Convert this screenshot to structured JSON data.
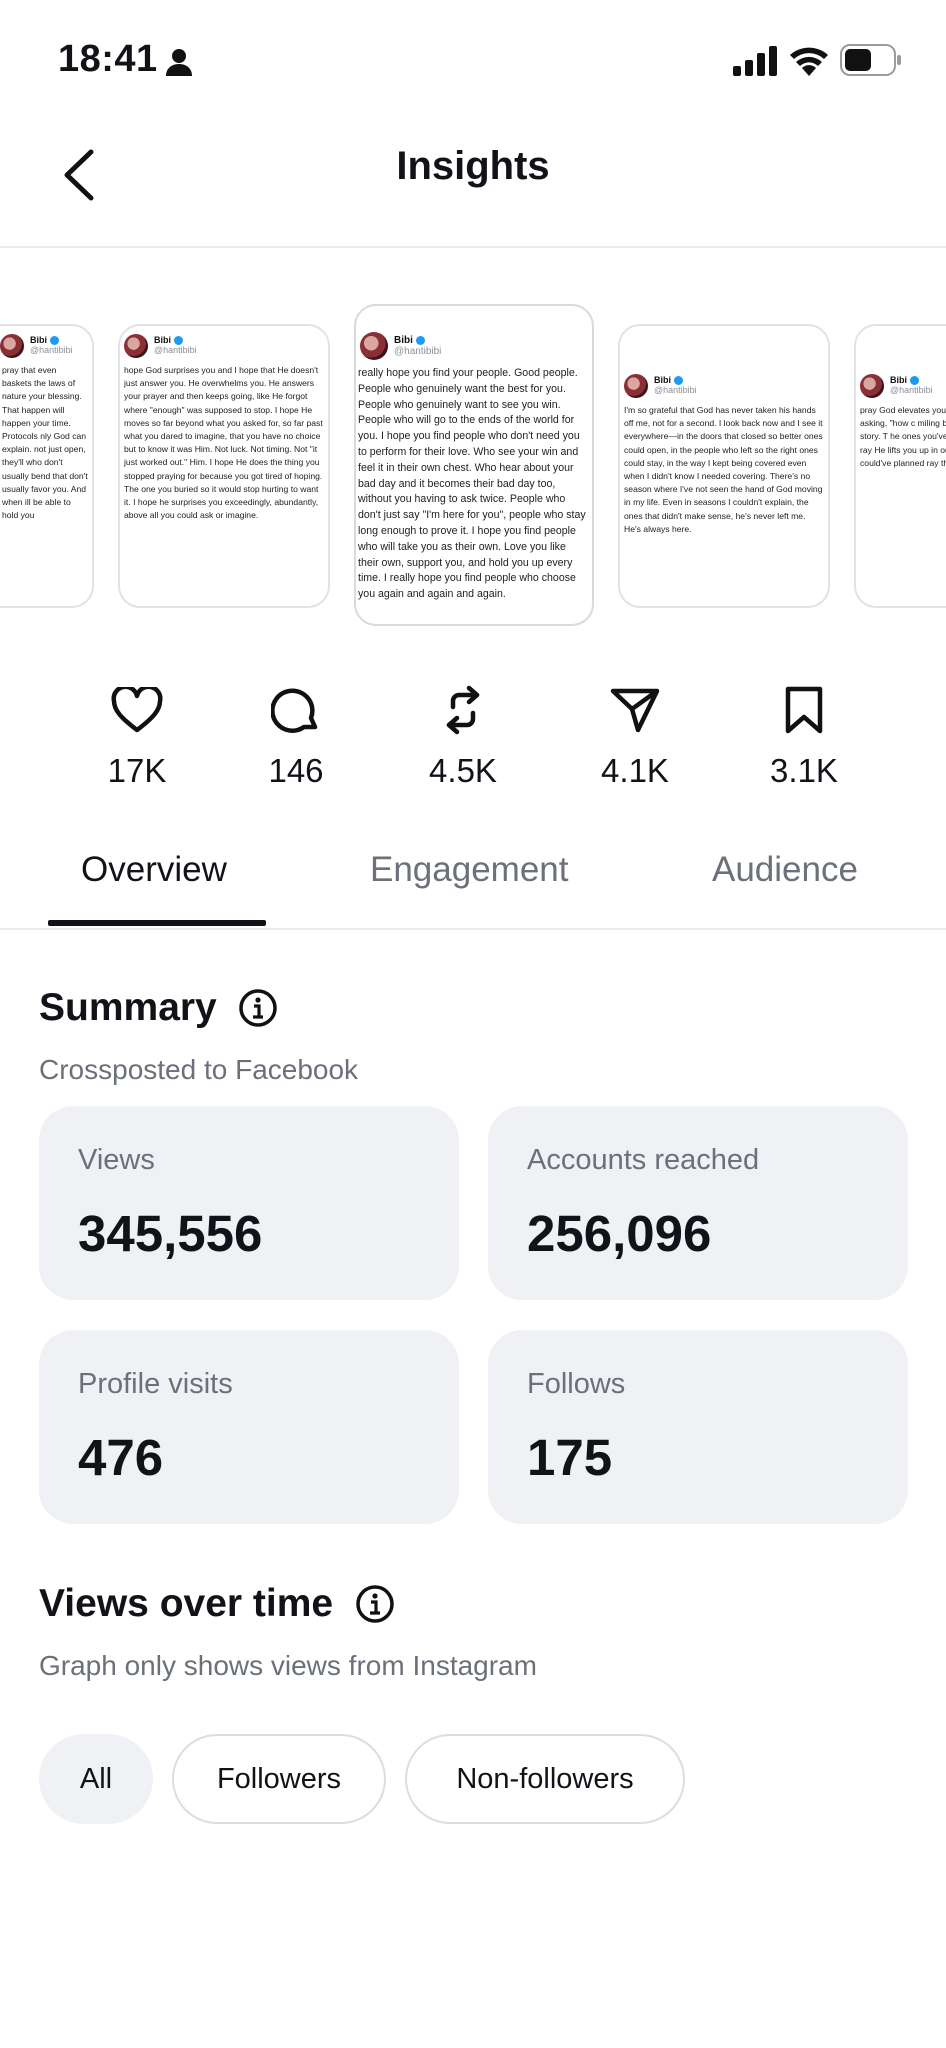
{
  "status_bar": {
    "time": "18:41"
  },
  "header": {
    "title": "Insights"
  },
  "posts": [
    {
      "name": "Bibi",
      "handle": "@hantibibi",
      "text": "pray that even baskets the laws of nature your blessing. That happen will happen your time. Protocols nly God can explain. not just open, they'll who don't usually bend that don't usually favor you. And when ill be able to hold you"
    },
    {
      "name": "Bibi",
      "handle": "@hantibibi",
      "text": "hope God surprises you and I hope that He doesn't just answer you. He overwhelms you. He answers your prayer and then keeps going, like He forgot where \"enough\" was supposed to stop. I hope He moves so far beyond what you asked for, so far past what you dared to imagine, that you have no choice but to know it was Him. Not luck. Not timing. Not \"it just worked out.\" Him. I hope He does the thing you stopped praying for because you got tired of hoping. The one you buried so it would stop hurting to want it. I hope he surprises you exceedingly, abundantly, above all you could ask or imagine."
    },
    {
      "name": "Bibi",
      "handle": "@hantibibi",
      "text": "really hope you find your people. Good people. People who genuinely want the best for you. People who genuinely want to see you win. People who will go to the ends of the world for you. I hope you find people who don't need you to perform for their love. Who see your win and feel it in their own chest. Who hear about your bad day and it becomes their bad day too, without you having to ask twice. People who don't just say \"I'm here for you\", people who stay long enough to prove it. I hope you find people who will take you as their own. Love you like their own, support you, and hold you up every time. I really hope you find people who choose you again and again and again."
    },
    {
      "name": "Bibi",
      "handle": "@hantibibi",
      "text": "I'm so grateful that God has never taken his hands off me, not for a second. I look back now and I see it everywhere—in the doors that closed so better ones could open, in the people who left so the right ones could stay, in the way I kept being covered even when I didn't know I needed covering. There's no season where I've not seen the hand of God moving in my life. Even in seasons I couldn't explain, the ones that didn't make sense, he's never left me. He's always here."
    },
    {
      "name": "Bibi",
      "handle": "@hantibibi",
      "text": "pray God elevates you that makes sense on people asking, \"how c miling because only changes your story. T he ones you've been rewrites them until the ray He lifts you up in our effort. Beyond yo you could've planned ray that grace speak"
    }
  ],
  "metrics": {
    "likes": "17K",
    "comments": "146",
    "reposts": "4.5K",
    "shares": "4.1K",
    "saves": "3.1K"
  },
  "tabs": {
    "overview": "Overview",
    "engagement": "Engagement",
    "audience": "Audience"
  },
  "summary": {
    "title": "Summary",
    "subtitle": "Crossposted to Facebook",
    "views_label": "Views",
    "views_value": "345,556",
    "reached_label": "Accounts reached",
    "reached_value": "256,096",
    "visits_label": "Profile visits",
    "visits_value": "476",
    "follows_label": "Follows",
    "follows_value": "175"
  },
  "views_over_time": {
    "title": "Views over time",
    "subtitle": "Graph only shows views from Instagram",
    "filters": {
      "all": "All",
      "followers": "Followers",
      "non_followers": "Non-followers"
    },
    "selected": "All"
  },
  "colors": {
    "text": "#111318",
    "muted": "#6b7079",
    "card_bg": "#f0f1f5",
    "verified": "#1d9bf0"
  }
}
